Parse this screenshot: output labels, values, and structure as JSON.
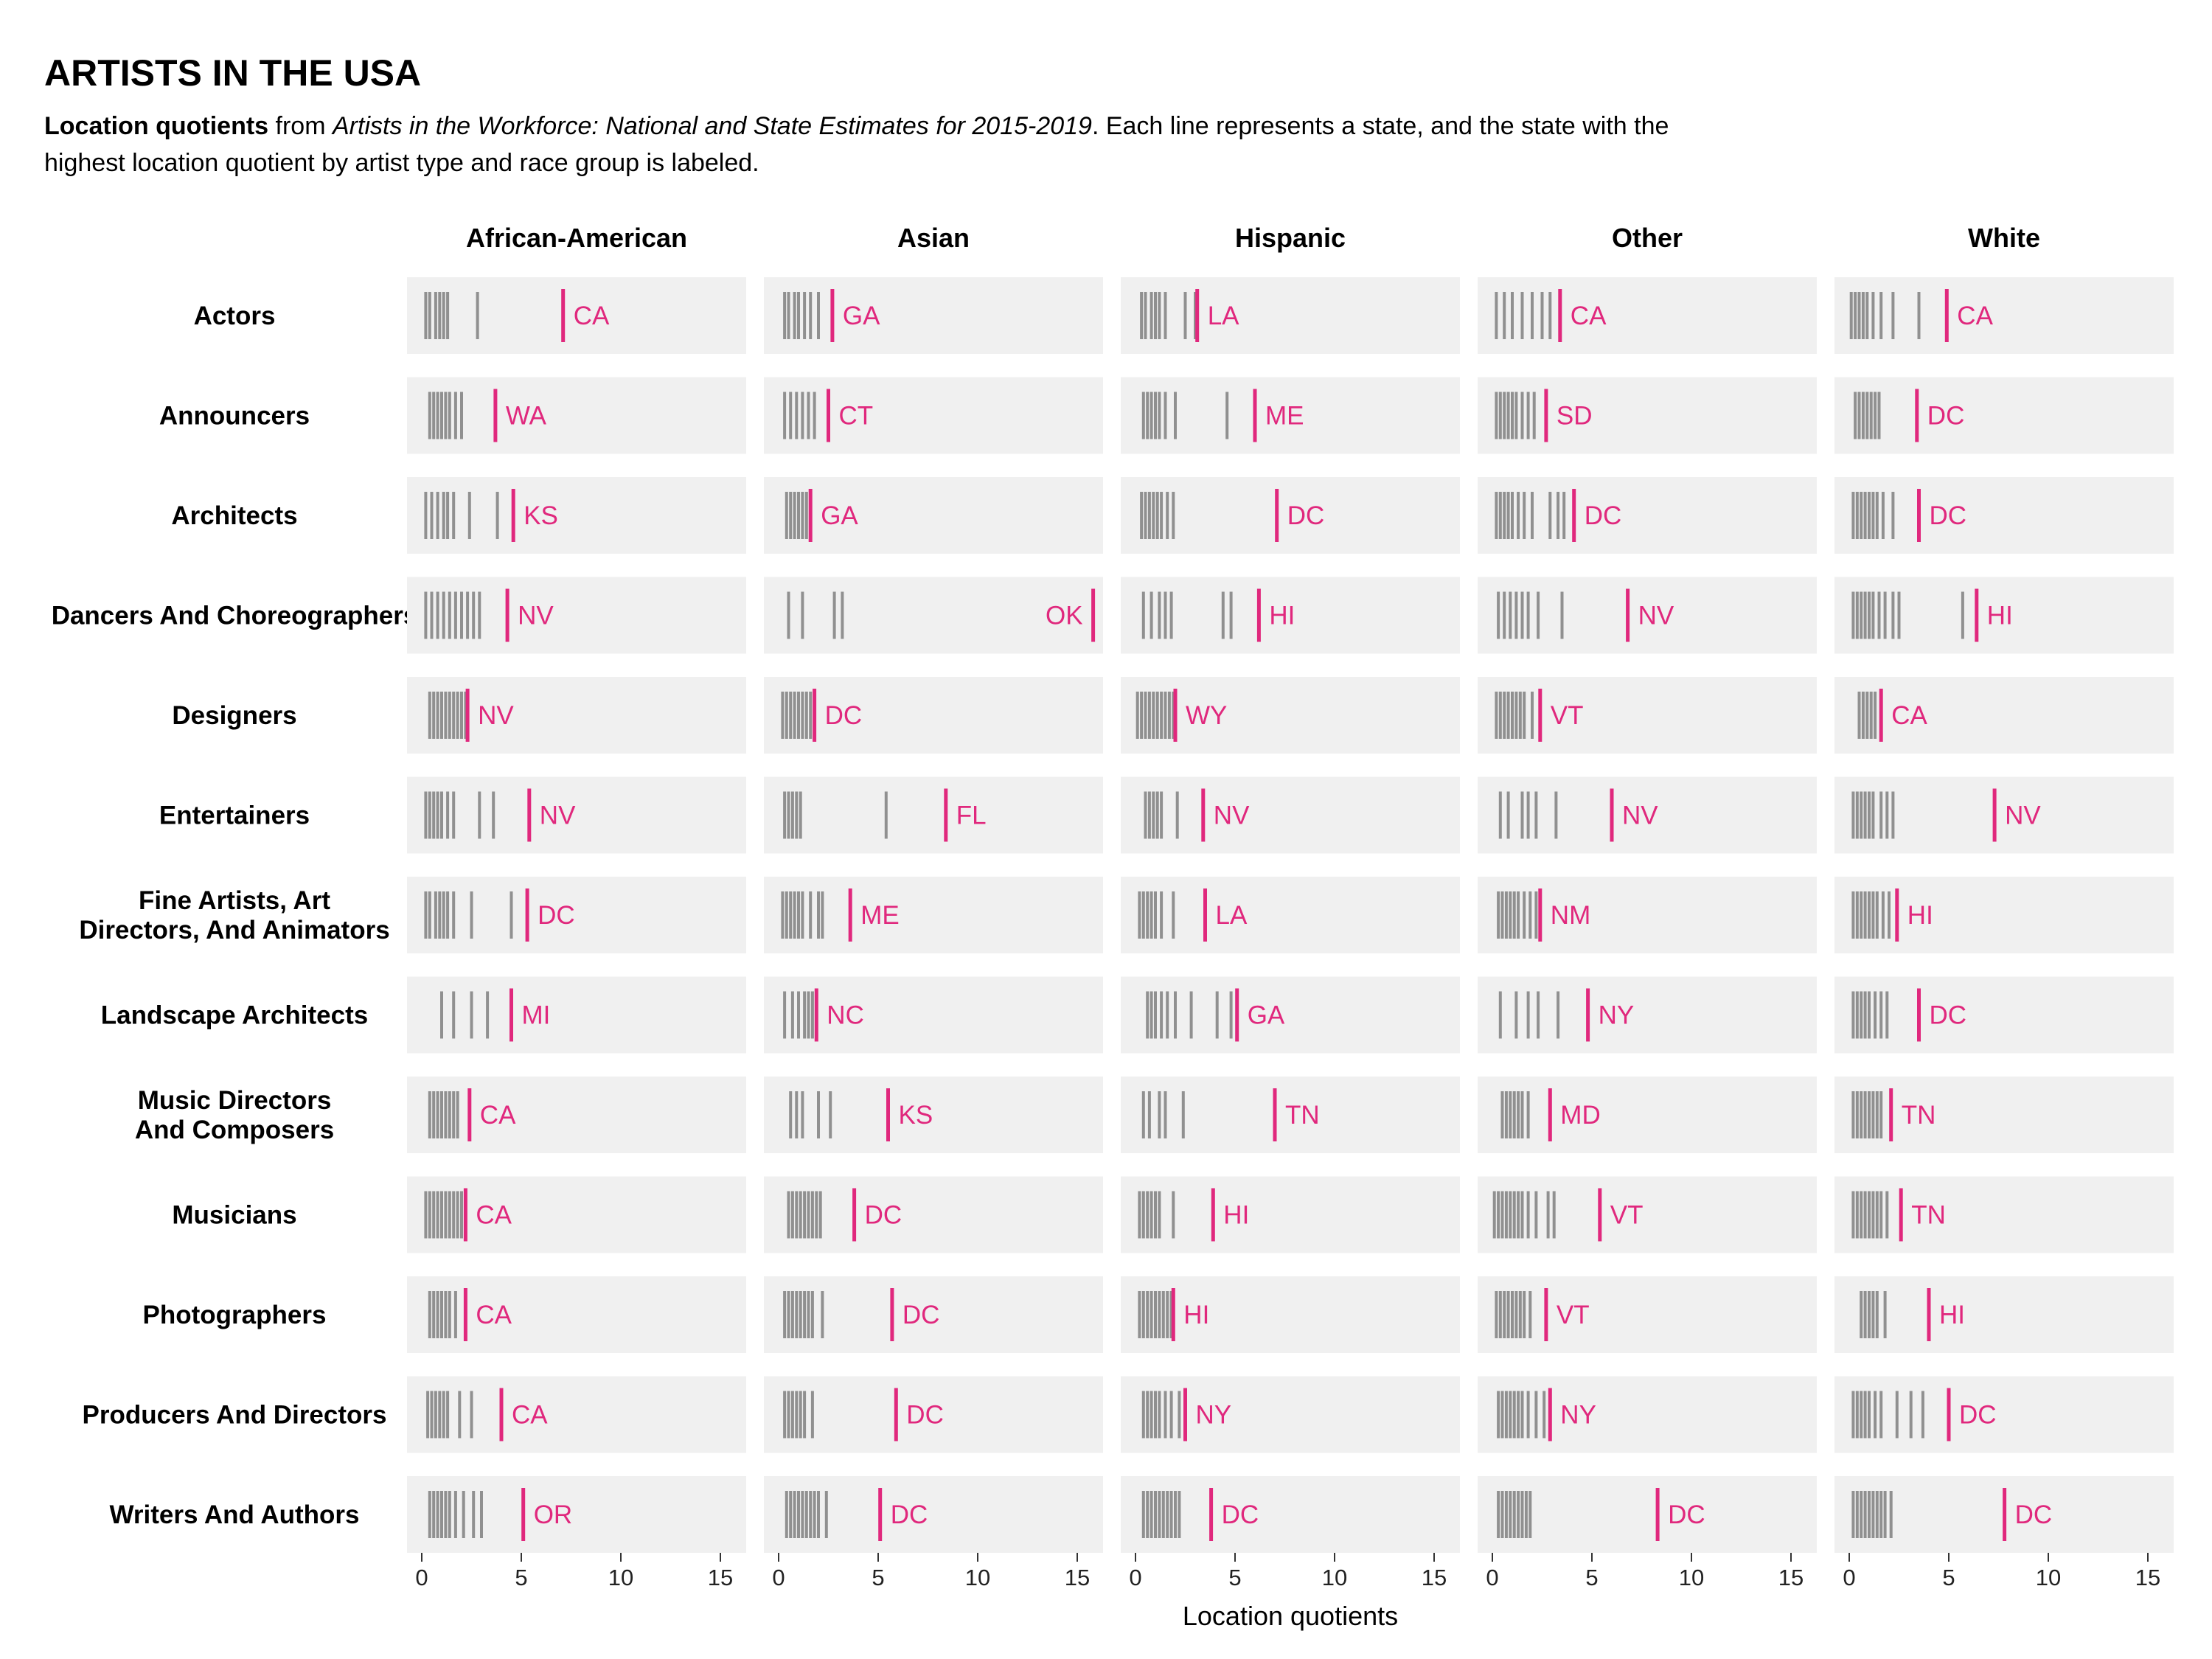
{
  "title": "ARTISTS IN THE USA",
  "subtitle": {
    "bold": "Location quotients",
    "pre_italic": " from ",
    "italic": "Artists in the Workforce: National and State Estimates for 2015-2019",
    "rest": ". Each line represents a state, and the state with the highest location quotient by artist type and race group is labeled."
  },
  "colors": {
    "accent": "#e0287d",
    "panel": "#f0f0f0",
    "line": "#000000"
  },
  "chart_data": {
    "type": "strip",
    "xlabel": "Location quotients",
    "xlim": [
      0,
      16
    ],
    "xticks": [
      0,
      5,
      10,
      15
    ],
    "columns": [
      "African-American",
      "Asian",
      "Hispanic",
      "Other",
      "White"
    ],
    "rows": [
      "Actors",
      "Announcers",
      "Architects",
      "Dancers And Choreographers",
      "Designers",
      "Entertainers",
      "Fine Artists, Art Directors, And Animators",
      "Landscape Architects",
      "Music Directors And Composers",
      "Musicians",
      "Photographers",
      "Producers And Directors",
      "Writers And Authors"
    ],
    "cells": [
      [
        {
          "values": [
            0.2,
            0.4,
            0.7,
            0.9,
            1.1,
            1.3,
            2.8
          ],
          "top_state": "CA",
          "top_value": 7.1
        },
        {
          "values": [
            0.3,
            0.5,
            0.8,
            1.0,
            1.3,
            1.6,
            2.0
          ],
          "top_state": "GA",
          "top_value": 2.7
        },
        {
          "values": [
            0.3,
            0.5,
            0.8,
            1.0,
            1.2,
            1.5,
            2.5,
            3.0
          ],
          "top_state": "LA",
          "top_value": 3.1
        },
        {
          "values": [
            0.2,
            0.6,
            1.0,
            1.5,
            2.0,
            2.5,
            2.9
          ],
          "top_state": "CA",
          "top_value": 3.4
        },
        {
          "values": [
            0.1,
            0.3,
            0.5,
            0.7,
            0.9,
            1.2,
            1.6,
            2.2,
            3.5
          ],
          "top_state": "CA",
          "top_value": 4.9
        }
      ],
      [
        {
          "values": [
            0.4,
            0.6,
            0.8,
            1.0,
            1.2,
            1.4,
            1.7,
            2.0
          ],
          "top_state": "WA",
          "top_value": 3.7
        },
        {
          "values": [
            0.3,
            0.6,
            0.9,
            1.2,
            1.5,
            1.8
          ],
          "top_state": "CT",
          "top_value": 2.5
        },
        {
          "values": [
            0.4,
            0.6,
            0.8,
            1.0,
            1.2,
            1.5,
            2.0,
            4.6
          ],
          "top_state": "ME",
          "top_value": 6.0
        },
        {
          "values": [
            0.2,
            0.4,
            0.6,
            0.8,
            1.0,
            1.2,
            1.5,
            1.8,
            2.1
          ],
          "top_state": "SD",
          "top_value": 2.7
        },
        {
          "values": [
            0.3,
            0.5,
            0.7,
            0.9,
            1.1,
            1.3,
            1.5
          ],
          "top_state": "DC",
          "top_value": 3.4
        }
      ],
      [
        {
          "values": [
            0.2,
            0.5,
            0.8,
            1.1,
            1.3,
            1.6,
            2.4,
            3.8
          ],
          "top_state": "KS",
          "top_value": 4.6
        },
        {
          "values": [
            0.4,
            0.6,
            0.8,
            1.0,
            1.2,
            1.4
          ],
          "top_state": "GA",
          "top_value": 1.6
        },
        {
          "values": [
            0.3,
            0.5,
            0.7,
            0.9,
            1.1,
            1.3,
            1.6,
            1.9
          ],
          "top_state": "DC",
          "top_value": 7.1
        },
        {
          "values": [
            0.2,
            0.4,
            0.6,
            0.8,
            1.0,
            1.3,
            1.6,
            2.0,
            2.9,
            3.3,
            3.6
          ],
          "top_state": "DC",
          "top_value": 4.1
        },
        {
          "values": [
            0.2,
            0.4,
            0.6,
            0.8,
            1.0,
            1.2,
            1.4,
            1.7,
            2.2
          ],
          "top_state": "DC",
          "top_value": 3.5
        }
      ],
      [
        {
          "values": [
            0.2,
            0.5,
            0.8,
            1.1,
            1.4,
            1.7,
            2.0,
            2.3,
            2.6,
            2.9
          ],
          "top_state": "NV",
          "top_value": 4.3
        },
        {
          "values": [
            0.5,
            1.2,
            2.8,
            3.2
          ],
          "top_state": "OK",
          "top_value": 15.8
        },
        {
          "values": [
            0.4,
            0.8,
            1.2,
            1.5,
            1.8,
            4.4,
            4.8
          ],
          "top_state": "HI",
          "top_value": 6.2
        },
        {
          "values": [
            0.3,
            0.6,
            0.9,
            1.2,
            1.5,
            1.8,
            2.3,
            3.5
          ],
          "top_state": "NV",
          "top_value": 6.8
        },
        {
          "values": [
            0.2,
            0.4,
            0.6,
            0.8,
            1.0,
            1.2,
            1.5,
            1.8,
            2.2,
            2.5,
            5.7
          ],
          "top_state": "HI",
          "top_value": 6.4
        }
      ],
      [
        {
          "values": [
            0.4,
            0.6,
            0.8,
            1.0,
            1.2,
            1.4,
            1.6,
            1.8,
            2.0,
            2.2
          ],
          "top_state": "NV",
          "top_value": 2.3
        },
        {
          "values": [
            0.2,
            0.4,
            0.6,
            0.8,
            1.0,
            1.2,
            1.4,
            1.6
          ],
          "top_state": "DC",
          "top_value": 1.8
        },
        {
          "values": [
            0.1,
            0.3,
            0.5,
            0.7,
            0.9,
            1.1,
            1.3,
            1.5,
            1.7,
            1.9
          ],
          "top_state": "WY",
          "top_value": 2.0
        },
        {
          "values": [
            0.2,
            0.4,
            0.6,
            0.8,
            1.0,
            1.2,
            1.4,
            1.6,
            2.0,
            2.4
          ],
          "top_state": "VT",
          "top_value": 2.4
        },
        {
          "values": [
            0.5,
            0.7,
            0.9,
            1.1,
            1.3
          ],
          "top_state": "CA",
          "top_value": 1.6
        }
      ],
      [
        {
          "values": [
            0.2,
            0.4,
            0.6,
            0.8,
            1.0,
            1.3,
            1.6,
            2.9,
            3.6
          ],
          "top_state": "NV",
          "top_value": 5.4
        },
        {
          "values": [
            0.3,
            0.5,
            0.7,
            0.9,
            1.1,
            5.4
          ],
          "top_state": "FL",
          "top_value": 8.4
        },
        {
          "values": [
            0.5,
            0.7,
            0.9,
            1.1,
            1.3,
            2.1
          ],
          "top_state": "NV",
          "top_value": 3.4
        },
        {
          "values": [
            0.4,
            0.8,
            1.5,
            1.8,
            2.2,
            3.2
          ],
          "top_state": "NV",
          "top_value": 6.0
        },
        {
          "values": [
            0.2,
            0.4,
            0.6,
            0.8,
            1.0,
            1.2,
            1.6,
            1.9,
            2.2
          ],
          "top_state": "NV",
          "top_value": 7.3
        }
      ],
      [
        {
          "values": [
            0.2,
            0.4,
            0.7,
            0.9,
            1.1,
            1.3,
            1.6,
            2.5,
            4.5
          ],
          "top_state": "DC",
          "top_value": 5.3
        },
        {
          "values": [
            0.2,
            0.4,
            0.6,
            0.8,
            1.0,
            1.2,
            1.6,
            2.0,
            2.2
          ],
          "top_state": "ME",
          "top_value": 3.6
        },
        {
          "values": [
            0.2,
            0.4,
            0.6,
            0.8,
            1.0,
            1.3,
            1.9
          ],
          "top_state": "LA",
          "top_value": 3.5
        },
        {
          "values": [
            0.3,
            0.5,
            0.7,
            0.9,
            1.1,
            1.3,
            1.6,
            1.9,
            2.2
          ],
          "top_state": "NM",
          "top_value": 2.4
        },
        {
          "values": [
            0.2,
            0.4,
            0.6,
            0.8,
            1.0,
            1.2,
            1.4,
            1.7,
            2.0
          ],
          "top_state": "HI",
          "top_value": 2.4
        }
      ],
      [
        {
          "values": [
            1.0,
            1.6,
            2.5,
            3.3
          ],
          "top_state": "MI",
          "top_value": 4.5
        },
        {
          "values": [
            0.3,
            0.7,
            1.0,
            1.3,
            1.5,
            1.7
          ],
          "top_state": "NC",
          "top_value": 1.9
        },
        {
          "values": [
            0.6,
            0.8,
            1.0,
            1.3,
            1.6,
            2.0,
            2.8,
            4.1,
            4.8
          ],
          "top_state": "GA",
          "top_value": 5.1
        },
        {
          "values": [
            0.4,
            1.2,
            1.8,
            2.3,
            3.3
          ],
          "top_state": "NY",
          "top_value": 4.8
        },
        {
          "values": [
            0.2,
            0.4,
            0.6,
            0.8,
            1.0,
            1.3,
            1.6,
            1.9
          ],
          "top_state": "DC",
          "top_value": 3.5
        }
      ],
      [
        {
          "values": [
            0.4,
            0.6,
            0.8,
            1.0,
            1.2,
            1.4,
            1.6,
            1.8
          ],
          "top_state": "CA",
          "top_value": 2.4
        },
        {
          "values": [
            0.6,
            0.9,
            1.2,
            2.0,
            2.6
          ],
          "top_state": "KS",
          "top_value": 5.5
        },
        {
          "values": [
            0.4,
            0.7,
            1.2,
            1.5,
            2.4
          ],
          "top_state": "TN",
          "top_value": 7.0
        },
        {
          "values": [
            0.5,
            0.7,
            0.9,
            1.1,
            1.3,
            1.5,
            1.8
          ],
          "top_state": "MD",
          "top_value": 2.9
        },
        {
          "values": [
            0.2,
            0.4,
            0.6,
            0.8,
            1.0,
            1.2,
            1.4,
            1.6
          ],
          "top_state": "TN",
          "top_value": 2.1
        }
      ],
      [
        {
          "values": [
            0.2,
            0.4,
            0.6,
            0.8,
            1.0,
            1.2,
            1.4,
            1.6,
            1.8,
            2.0
          ],
          "top_state": "CA",
          "top_value": 2.2
        },
        {
          "values": [
            0.5,
            0.7,
            0.9,
            1.1,
            1.3,
            1.5,
            1.7,
            1.9,
            2.1
          ],
          "top_state": "DC",
          "top_value": 3.8
        },
        {
          "values": [
            0.2,
            0.4,
            0.6,
            0.8,
            1.0,
            1.2,
            1.9
          ],
          "top_state": "HI",
          "top_value": 3.9
        },
        {
          "values": [
            0.1,
            0.3,
            0.5,
            0.7,
            0.9,
            1.1,
            1.3,
            1.5,
            1.8,
            2.2,
            2.8,
            3.1
          ],
          "top_state": "VT",
          "top_value": 5.4
        },
        {
          "values": [
            0.2,
            0.4,
            0.6,
            0.8,
            1.0,
            1.2,
            1.4,
            1.6,
            1.9
          ],
          "top_state": "TN",
          "top_value": 2.6
        }
      ],
      [
        {
          "values": [
            0.4,
            0.6,
            0.8,
            1.0,
            1.2,
            1.4,
            1.7
          ],
          "top_state": "CA",
          "top_value": 2.2
        },
        {
          "values": [
            0.3,
            0.5,
            0.7,
            0.9,
            1.1,
            1.3,
            1.5,
            1.7,
            2.2
          ],
          "top_state": "DC",
          "top_value": 5.7
        },
        {
          "values": [
            0.2,
            0.4,
            0.6,
            0.8,
            1.0,
            1.2,
            1.4,
            1.6,
            1.8
          ],
          "top_state": "HI",
          "top_value": 1.9
        },
        {
          "values": [
            0.2,
            0.4,
            0.6,
            0.8,
            1.0,
            1.2,
            1.4,
            1.6,
            1.9
          ],
          "top_state": "VT",
          "top_value": 2.7
        },
        {
          "values": [
            0.6,
            0.8,
            1.0,
            1.2,
            1.4,
            1.8
          ],
          "top_state": "HI",
          "top_value": 4.0
        }
      ],
      [
        {
          "values": [
            0.3,
            0.5,
            0.7,
            0.9,
            1.1,
            1.3,
            1.9,
            2.5
          ],
          "top_state": "CA",
          "top_value": 4.0
        },
        {
          "values": [
            0.3,
            0.5,
            0.7,
            0.9,
            1.1,
            1.3,
            1.7
          ],
          "top_state": "DC",
          "top_value": 5.9
        },
        {
          "values": [
            0.4,
            0.6,
            0.8,
            1.0,
            1.2,
            1.5,
            1.8,
            2.2,
            2.5
          ],
          "top_state": "NY",
          "top_value": 2.5
        },
        {
          "values": [
            0.3,
            0.5,
            0.7,
            0.9,
            1.1,
            1.3,
            1.5,
            1.8,
            2.2,
            2.6
          ],
          "top_state": "NY",
          "top_value": 2.9
        },
        {
          "values": [
            0.2,
            0.4,
            0.6,
            0.8,
            1.0,
            1.3,
            1.6,
            2.4,
            3.1,
            3.7
          ],
          "top_state": "DC",
          "top_value": 5.0
        }
      ],
      [
        {
          "values": [
            0.4,
            0.6,
            0.8,
            1.0,
            1.2,
            1.4,
            1.7,
            2.1,
            2.6,
            3.0
          ],
          "top_state": "OR",
          "top_value": 5.1
        },
        {
          "values": [
            0.4,
            0.6,
            0.8,
            1.0,
            1.2,
            1.4,
            1.6,
            1.8,
            2.0,
            2.4
          ],
          "top_state": "DC",
          "top_value": 5.1
        },
        {
          "values": [
            0.4,
            0.6,
            0.8,
            1.0,
            1.2,
            1.4,
            1.6,
            1.8,
            2.0,
            2.2
          ],
          "top_state": "DC",
          "top_value": 3.8
        },
        {
          "values": [
            0.3,
            0.5,
            0.7,
            0.9,
            1.1,
            1.3,
            1.5,
            1.7,
            1.9
          ],
          "top_state": "DC",
          "top_value": 8.3
        },
        {
          "values": [
            0.2,
            0.4,
            0.6,
            0.8,
            1.0,
            1.2,
            1.4,
            1.6,
            1.8,
            2.1
          ],
          "top_state": "DC",
          "top_value": 7.8
        }
      ]
    ]
  }
}
